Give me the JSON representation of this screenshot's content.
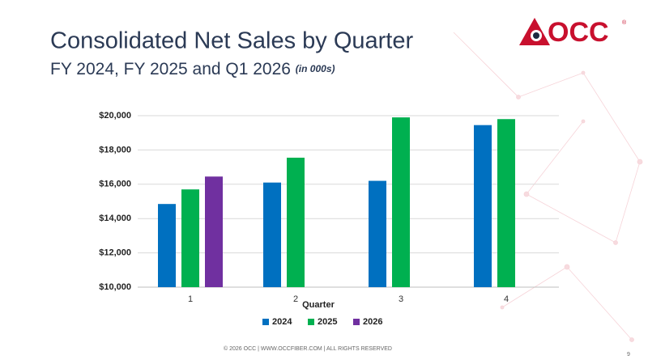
{
  "slide": {
    "logo": "OCC",
    "logo_mark": "®",
    "footer": "© 2026 OCC  |  WWW.OCCFIBER.COM  |  ALL RIGHTS RESERVED",
    "page_number": "9"
  },
  "chart_data": {
    "type": "bar",
    "title": "Consolidated Net Sales by Quarter",
    "subtitle": "FY 2024, FY 2025 and Q1 2026",
    "subtitle_note": "(in 000s)",
    "x_label": "Quarter",
    "categories": [
      "1",
      "2",
      "3",
      "4"
    ],
    "series": [
      {
        "name": "2024",
        "color": "#0070c0",
        "values": [
          14850,
          16100,
          16200,
          19450
        ]
      },
      {
        "name": "2025",
        "color": "#00b050",
        "values": [
          15700,
          17550,
          19900,
          19800
        ]
      },
      {
        "name": "2026",
        "color": "#7030a0",
        "values": [
          16450,
          null,
          null,
          null
        ]
      }
    ],
    "ylim": [
      10000,
      20000
    ],
    "yticks": [
      {
        "value": 10000,
        "label": "$10,000"
      },
      {
        "value": 12000,
        "label": "$12,000"
      },
      {
        "value": 14000,
        "label": "$14,000"
      },
      {
        "value": 16000,
        "label": "$16,000"
      },
      {
        "value": 18000,
        "label": "$18,000"
      },
      {
        "value": 20000,
        "label": "$20,000"
      }
    ],
    "grid": true,
    "legend": "bottom"
  }
}
